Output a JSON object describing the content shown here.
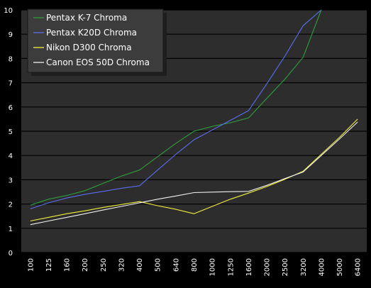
{
  "chart_data": {
    "type": "line",
    "title": "",
    "xlabel": "",
    "ylabel": "",
    "categories": [
      "100",
      "125",
      "160",
      "200",
      "250",
      "320",
      "400",
      "500",
      "640",
      "800",
      "1000",
      "1250",
      "1600",
      "2000",
      "2500",
      "3200",
      "4000",
      "5000",
      "6400"
    ],
    "ylim": [
      0,
      10
    ],
    "y_ticks": [
      "0",
      "1",
      "2",
      "3",
      "4",
      "5",
      "6",
      "7",
      "8",
      "9",
      "10"
    ],
    "grid": true,
    "legend_placement": "top-left",
    "series": [
      {
        "name": "Pentax K-7 Chroma",
        "color": "#2f9e3c",
        "values": [
          1.95,
          2.2,
          2.35,
          2.55,
          2.85,
          3.15,
          3.4,
          3.95,
          4.5,
          5.0,
          5.2,
          5.35,
          5.55,
          6.35,
          7.15,
          8.05,
          10.0,
          null,
          null
        ]
      },
      {
        "name": "Pentax K20D Chroma",
        "color": "#5a6ff0",
        "values": [
          1.8,
          2.05,
          2.25,
          2.4,
          2.52,
          2.65,
          2.75,
          3.4,
          4.05,
          4.65,
          5.05,
          5.45,
          5.85,
          6.95,
          8.1,
          9.35,
          10.0,
          null,
          null
        ]
      },
      {
        "name": "Nikon D300 Chroma",
        "color": "#f0f03c",
        "values": [
          1.3,
          1.45,
          1.6,
          1.72,
          1.86,
          1.98,
          2.1,
          1.93,
          1.78,
          1.6,
          1.9,
          2.2,
          2.45,
          2.72,
          3.02,
          3.35,
          4.05,
          4.75,
          5.5
        ]
      },
      {
        "name": "Canon EOS 50D Chroma",
        "color": "#f0f0f0",
        "values": [
          1.15,
          1.3,
          1.45,
          1.6,
          1.75,
          1.9,
          2.05,
          2.2,
          2.33,
          2.47,
          2.49,
          2.51,
          2.52,
          2.77,
          3.05,
          3.32,
          4.0,
          4.68,
          5.38
        ]
      }
    ]
  }
}
